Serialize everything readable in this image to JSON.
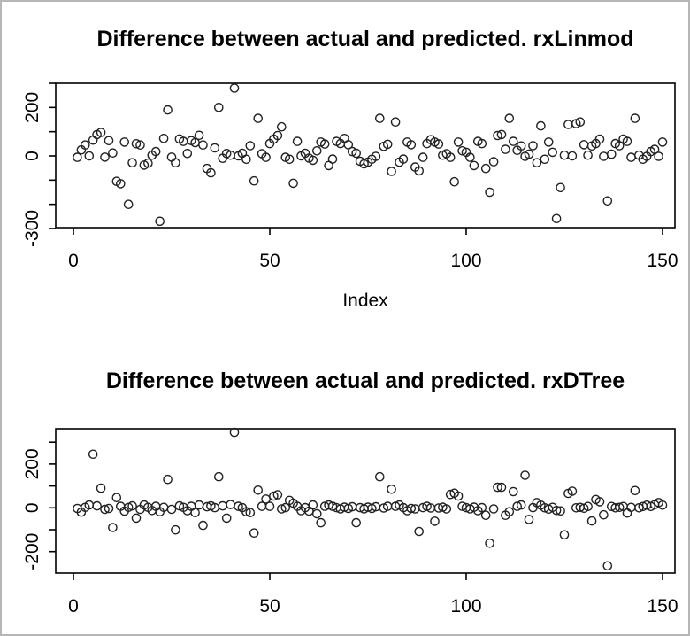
{
  "window": {
    "background": "#ffffff",
    "border_color": "#b6b6b6",
    "point_color": "#222222",
    "axis_color": "#000000"
  },
  "chart_data": [
    {
      "type": "scatter",
      "title": "Difference between actual and predicted. rxLinmod",
      "xlabel": "Index",
      "ylabel": "",
      "marker": "open-circle",
      "x_is_index": true,
      "n": 150,
      "xlim": [
        -4.5,
        153.5
      ],
      "ylim": [
        -300,
        300
      ],
      "xticks": [
        0,
        50,
        100,
        150
      ],
      "xtick_labels": [
        "0",
        "50",
        "100",
        "150"
      ],
      "yticks": [
        -300,
        -200,
        -100,
        0,
        100,
        200,
        300
      ],
      "ytick_labels": [
        "-300",
        "",
        "",
        "0",
        "",
        "200",
        ""
      ],
      "grid": false,
      "y": [
        -6,
        25,
        45,
        0,
        65,
        88,
        97,
        -5,
        63,
        12,
        -105,
        -115,
        57,
        -200,
        -28,
        50,
        45,
        -38,
        -30,
        3,
        18,
        -270,
        72,
        190,
        -5,
        -28,
        70,
        60,
        10,
        63,
        55,
        85,
        45,
        -52,
        -70,
        33,
        200,
        -10,
        10,
        3,
        280,
        0,
        11,
        -14,
        42,
        -103,
        155,
        9,
        -6,
        51,
        69,
        84,
        120,
        -6,
        -14,
        -113,
        60,
        0,
        11,
        -9,
        -18,
        21,
        57,
        49,
        -40,
        -13,
        60,
        51,
        72,
        46,
        18,
        11,
        -22,
        -33,
        -26,
        -14,
        -2,
        155,
        39,
        48,
        -64,
        140,
        -26,
        -13,
        57,
        46,
        -46,
        -62,
        -6,
        51,
        67,
        57,
        49,
        3,
        9,
        -6,
        -107,
        57,
        21,
        15,
        -6,
        -40,
        60,
        51,
        -52,
        -150,
        -24,
        84,
        88,
        27,
        155,
        60,
        23,
        41,
        -2,
        7,
        42,
        -28,
        124,
        -14,
        57,
        15,
        -259,
        -131,
        3,
        130,
        0,
        133,
        140,
        46,
        3,
        41,
        51,
        69,
        -2,
        -186,
        7,
        51,
        42,
        69,
        60,
        -6,
        155,
        3,
        -14,
        -2,
        18,
        27,
        -2,
        57
      ]
    },
    {
      "type": "scatter",
      "title": "Difference between actual and predicted. rxDTree",
      "xlabel": "",
      "ylabel": "",
      "marker": "open-circle",
      "x_is_index": true,
      "n": 150,
      "xlim": [
        -4.5,
        153.5
      ],
      "ylim": [
        -298,
        361
      ],
      "xticks": [
        0,
        50,
        100,
        150
      ],
      "xtick_labels": [
        "0",
        "50",
        "100",
        "150"
      ],
      "yticks": [
        -200,
        -100,
        0,
        100,
        200,
        300
      ],
      "ytick_labels": [
        "-200",
        "",
        "0",
        "",
        "200",
        ""
      ],
      "grid": false,
      "y": [
        -3,
        -20,
        2,
        13,
        245,
        9,
        90,
        -7,
        -3,
        -90,
        47,
        7,
        -15,
        2,
        9,
        -47,
        -7,
        13,
        2,
        -12,
        7,
        -18,
        2,
        130,
        -7,
        -101,
        9,
        2,
        -13,
        7,
        -22,
        13,
        -80,
        5,
        9,
        1,
        142,
        9,
        -47,
        15,
        345,
        7,
        1,
        -18,
        -22,
        -115,
        81,
        7,
        40,
        7,
        54,
        60,
        -5,
        1,
        34,
        21,
        7,
        -13,
        1,
        -15,
        13,
        -27,
        -68,
        7,
        13,
        7,
        1,
        -5,
        3,
        -3,
        5,
        -68,
        1,
        -5,
        3,
        -3,
        5,
        142,
        -1,
        7,
        85,
        7,
        13,
        1,
        -13,
        -3,
        -5,
        -108,
        1,
        7,
        -1,
        -61,
        -1,
        3,
        -5,
        61,
        67,
        54,
        7,
        1,
        -5,
        3,
        -13,
        1,
        -34,
        -162,
        -5,
        94,
        94,
        -34,
        -18,
        74,
        7,
        13,
        149,
        -53,
        1,
        24,
        12,
        0,
        -6,
        2,
        -12,
        -14,
        -123,
        66,
        76,
        0,
        2,
        -2,
        6,
        -60,
        38,
        28,
        -32,
        -265,
        6,
        0,
        2,
        6,
        -24,
        2,
        79,
        0,
        6,
        12,
        6,
        14,
        24,
        12
      ]
    }
  ]
}
